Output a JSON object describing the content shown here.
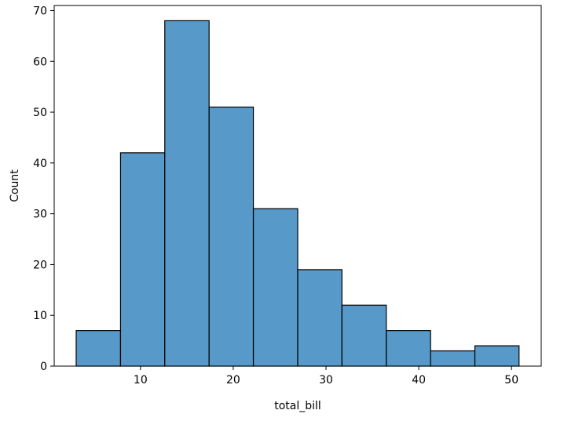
{
  "chart_data": {
    "type": "bar",
    "subtype": "histogram",
    "title": "",
    "xlabel": "total_bill",
    "ylabel": "Count",
    "xlim": [
      0.7,
      53.2
    ],
    "ylim": [
      0,
      71
    ],
    "xticks": [
      10,
      20,
      30,
      40,
      50
    ],
    "yticks": [
      0,
      10,
      20,
      30,
      40,
      50,
      60,
      70
    ],
    "bin_edges": [
      3.07,
      7.85,
      12.62,
      17.4,
      22.17,
      26.95,
      31.72,
      36.5,
      41.27,
      46.05,
      50.81
    ],
    "values": [
      7,
      42,
      68,
      51,
      31,
      19,
      12,
      7,
      3,
      4
    ],
    "bar_color": "#5799c8",
    "edge_color": "#000000",
    "grid": false
  }
}
